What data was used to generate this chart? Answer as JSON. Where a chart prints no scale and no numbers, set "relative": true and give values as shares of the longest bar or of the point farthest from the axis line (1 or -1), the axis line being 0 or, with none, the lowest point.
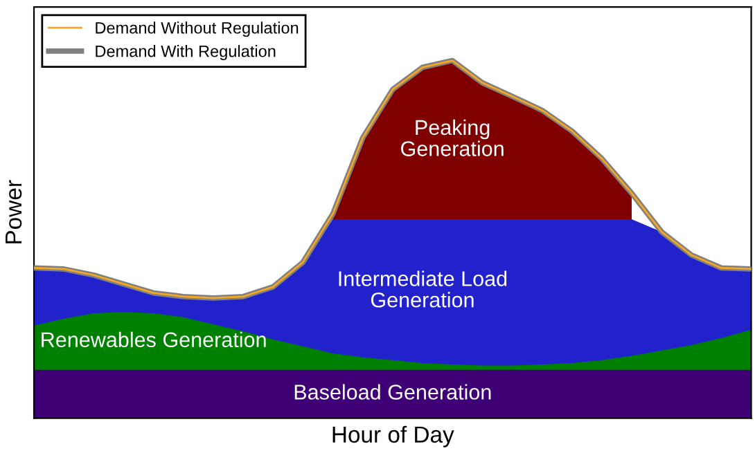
{
  "chart_data": [
    {
      "type": "area",
      "relative": true,
      "xlabel": "Hour of Day",
      "ylabel": "Power",
      "tick_labels": false,
      "categories": [
        null,
        null,
        null,
        null,
        null,
        null,
        null,
        null,
        null,
        null,
        null,
        null,
        null,
        null,
        null,
        null,
        null,
        null,
        null,
        null,
        null,
        null,
        null,
        null,
        null
      ],
      "series": [
        {
          "name": "Peaking Generation",
          "color": "#800000",
          "values": [
            null,
            null,
            null,
            null,
            null,
            null,
            null,
            null,
            null,
            null,
            0.571,
            0.784,
            0.919,
            0.981,
            1.0,
            0.938,
            0.9,
            0.861,
            0.803,
            0.726,
            0.629,
            null,
            null,
            null,
            null
          ]
        },
        {
          "name": "Intermediate Load Generation",
          "color": "#2222cc",
          "values": [
            0.42,
            0.417,
            0.4,
            0.375,
            0.35,
            0.34,
            0.336,
            0.34,
            0.367,
            0.436,
            0.556,
            0.556,
            0.556,
            0.556,
            0.556,
            0.556,
            0.556,
            0.556,
            0.556,
            0.556,
            0.556,
            0.521,
            0.456,
            0.42,
            0.417
          ]
        },
        {
          "name": "Renewables Generation",
          "color": "#008000",
          "values": [
            0.259,
            0.278,
            0.293,
            0.297,
            0.293,
            0.282,
            0.262,
            0.243,
            0.22,
            0.201,
            0.181,
            0.17,
            0.162,
            0.154,
            0.15,
            0.147,
            0.147,
            0.15,
            0.154,
            0.162,
            0.174,
            0.189,
            0.204,
            0.224,
            0.247
          ]
        },
        {
          "name": "Baseload Generation",
          "color": "#3f0075",
          "values": [
            0.135,
            0.135,
            0.135,
            0.135,
            0.135,
            0.135,
            0.135,
            0.135,
            0.135,
            0.135,
            0.135,
            0.135,
            0.135,
            0.135,
            0.135,
            0.135,
            0.135,
            0.135,
            0.135,
            0.135,
            0.135,
            0.135,
            0.135,
            0.135,
            0.135
          ]
        }
      ]
    },
    {
      "type": "line",
      "relative": true,
      "tick_labels": false,
      "legend": "top left",
      "categories": [
        null,
        null,
        null,
        null,
        null,
        null,
        null,
        null,
        null,
        null,
        null,
        null,
        null,
        null,
        null,
        null,
        null,
        null,
        null,
        null,
        null,
        null,
        null,
        null,
        null
      ],
      "series": [
        {
          "name": "Demand Without Regulation",
          "color": "#f5a623",
          "values": [
            0.42,
            0.417,
            0.4,
            0.375,
            0.35,
            0.34,
            0.336,
            0.34,
            0.367,
            0.436,
            0.571,
            0.784,
            0.919,
            0.981,
            1.0,
            0.938,
            0.9,
            0.861,
            0.803,
            0.726,
            0.629,
            0.521,
            0.456,
            0.42,
            0.417
          ]
        },
        {
          "name": "Demand With Regulation",
          "color": "#808080",
          "values": [
            0.42,
            0.417,
            0.4,
            0.375,
            0.35,
            0.34,
            0.336,
            0.34,
            0.367,
            0.436,
            0.571,
            0.784,
            0.919,
            0.981,
            1.0,
            0.938,
            0.9,
            0.861,
            0.803,
            0.726,
            0.629,
            0.521,
            0.456,
            0.42,
            0.417
          ]
        }
      ]
    }
  ]
}
